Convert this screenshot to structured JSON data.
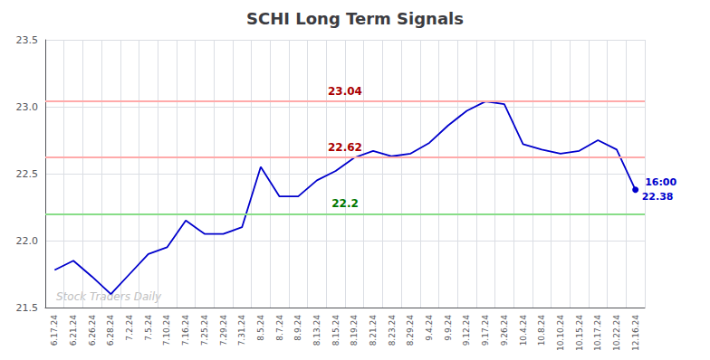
{
  "chart_data": {
    "type": "line",
    "title": "SCHI Long Term Signals",
    "categories": [
      "6.17.24",
      "6.21.24",
      "6.26.24",
      "6.28.24",
      "7.2.24",
      "7.5.24",
      "7.10.24",
      "7.16.24",
      "7.25.24",
      "7.29.24",
      "7.31.24",
      "8.5.24",
      "8.7.24",
      "8.9.24",
      "8.13.24",
      "8.15.24",
      "8.19.24",
      "8.21.24",
      "8.23.24",
      "8.29.24",
      "9.4.24",
      "9.9.24",
      "9.12.24",
      "9.17.24",
      "9.26.24",
      "10.4.24",
      "10.8.24",
      "10.10.24",
      "10.15.24",
      "10.17.24",
      "10.22.24",
      "12.16.24"
    ],
    "values": [
      21.78,
      21.85,
      21.73,
      21.6,
      21.75,
      21.9,
      21.95,
      22.15,
      22.05,
      22.05,
      22.1,
      22.55,
      22.33,
      22.33,
      22.45,
      22.52,
      22.62,
      22.67,
      22.63,
      22.65,
      22.73,
      22.86,
      22.97,
      23.04,
      23.02,
      22.72,
      22.68,
      22.65,
      22.67,
      22.75,
      22.68,
      22.38
    ],
    "color": "#0000cc",
    "ylim": [
      21.5,
      23.5
    ],
    "yticks": [
      21.5,
      {
        "value": 22,
        "label": "22.0"
      },
      22.5,
      {
        "value": 23,
        "label": "23.0"
      },
      23.5
    ],
    "grid": true,
    "reference_lines": [
      {
        "value": 23.04,
        "label": "23.04",
        "color": "#ffaaaa",
        "label_color": "#aa0000"
      },
      {
        "value": 22.62,
        "label": "22.62",
        "color": "#ffaaaa",
        "label_color": "#aa0000"
      },
      {
        "value": 22.2,
        "label": "22.2",
        "color": "#88dd88",
        "label_color": "#007700"
      }
    ],
    "end_label": {
      "time": "16:00",
      "value": 22.38,
      "label": "22.38"
    },
    "watermark": "Stock Traders Daily"
  }
}
